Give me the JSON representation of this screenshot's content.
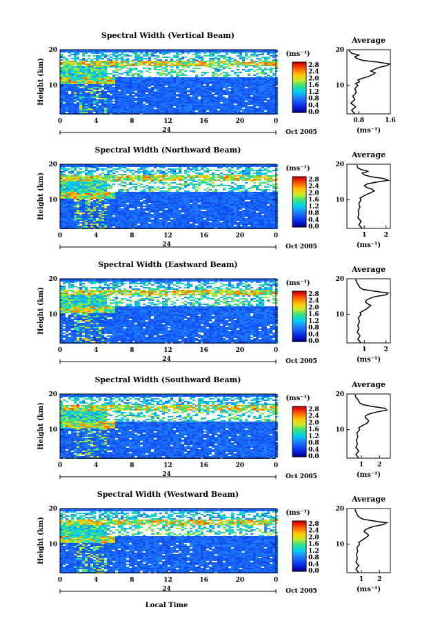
{
  "figure": {
    "x_label": "Local Time",
    "date_label": "Oct 2005",
    "y_label": "Height (km)",
    "colorbar_unit": "(ms⁻¹)",
    "avg_title": "Average",
    "avg_xlabel": "(ms⁻¹)"
  },
  "chart_data": [
    {
      "type": "heatmap",
      "title": "Spectral Width (Vertical Beam)",
      "xlabel": "Local Time",
      "ylabel": "Height (km)",
      "x_ticks": [
        "0",
        "4",
        "8",
        "12",
        "16",
        "20",
        "0"
      ],
      "x_day_label": "24",
      "xlim": [
        0,
        24
      ],
      "ylim": [
        2,
        20
      ],
      "y_ticks": [
        "10",
        "20"
      ],
      "colorbar": {
        "unit": "(ms⁻¹)",
        "ticks": [
          "2.8",
          "2.4",
          "2.0",
          "1.6",
          "1.2",
          "0.8",
          "0.4",
          "0.0"
        ],
        "range": [
          0,
          3.0
        ]
      },
      "average": {
        "title": "Average",
        "xlabel": "(ms⁻¹)",
        "x_ticks": [
          "0.8",
          "1.6"
        ],
        "x_tick_values": [
          0.8,
          1.6
        ],
        "xlim": [
          0.5,
          1.6
        ],
        "y_ticks": [
          "10",
          "20"
        ],
        "ylim": [
          2,
          20
        ],
        "profile": [
          [
            0.7,
            2
          ],
          [
            0.62,
            3
          ],
          [
            0.72,
            4
          ],
          [
            0.6,
            5
          ],
          [
            0.7,
            6
          ],
          [
            0.65,
            7
          ],
          [
            0.74,
            8
          ],
          [
            0.7,
            9
          ],
          [
            0.78,
            10
          ],
          [
            0.72,
            10.5
          ],
          [
            0.82,
            11
          ],
          [
            0.78,
            11.5
          ],
          [
            0.9,
            12
          ],
          [
            1.05,
            12.5
          ],
          [
            1.15,
            13
          ],
          [
            1.22,
            13.5
          ],
          [
            1.1,
            14
          ],
          [
            1.2,
            14.5
          ],
          [
            1.3,
            15
          ],
          [
            1.5,
            15.5
          ],
          [
            1.58,
            16
          ],
          [
            1.3,
            16.5
          ],
          [
            0.9,
            17
          ],
          [
            0.75,
            17.5
          ],
          [
            0.7,
            18
          ],
          [
            0.8,
            18.5
          ],
          [
            0.62,
            19
          ],
          [
            0.55,
            19.8
          ]
        ]
      }
    },
    {
      "type": "heatmap",
      "title": "Spectral Width (Northward Beam)",
      "xlabel": "Local Time",
      "ylabel": "Height (km)",
      "x_ticks": [
        "0",
        "4",
        "8",
        "12",
        "16",
        "20",
        "0"
      ],
      "x_day_label": "24",
      "xlim": [
        0,
        24
      ],
      "ylim": [
        2,
        20
      ],
      "y_ticks": [
        "10",
        "20"
      ],
      "colorbar": {
        "unit": "(ms⁻¹)",
        "ticks": [
          "2.8",
          "2.4",
          "2.0",
          "1.6",
          "1.2",
          "0.8",
          "0.4",
          "0.0"
        ],
        "range": [
          0,
          3.0
        ]
      },
      "average": {
        "title": "Average",
        "xlabel": "(ms⁻¹)",
        "x_ticks": [
          "1",
          "2"
        ],
        "x_tick_values": [
          1,
          2
        ],
        "xlim": [
          0.2,
          2.2
        ],
        "y_ticks": [
          "10",
          "20"
        ],
        "ylim": [
          2,
          20
        ],
        "profile": [
          [
            0.9,
            2
          ],
          [
            0.75,
            3
          ],
          [
            0.85,
            4
          ],
          [
            0.7,
            5
          ],
          [
            0.75,
            6
          ],
          [
            0.72,
            7
          ],
          [
            0.8,
            8
          ],
          [
            0.75,
            9
          ],
          [
            0.85,
            10
          ],
          [
            0.8,
            10.5
          ],
          [
            0.95,
            11
          ],
          [
            1.1,
            11.5
          ],
          [
            1.3,
            12
          ],
          [
            1.45,
            12.5
          ],
          [
            1.35,
            13
          ],
          [
            1.1,
            13.5
          ],
          [
            1.0,
            14
          ],
          [
            1.15,
            14.5
          ],
          [
            1.6,
            15
          ],
          [
            2.1,
            15.5
          ],
          [
            1.9,
            16
          ],
          [
            1.3,
            16.5
          ],
          [
            1.0,
            17
          ],
          [
            0.9,
            17.5
          ],
          [
            1.2,
            18
          ],
          [
            0.85,
            18.5
          ],
          [
            0.7,
            19
          ],
          [
            0.65,
            19.8
          ]
        ]
      }
    },
    {
      "type": "heatmap",
      "title": "Spectral Width (Eastward Beam)",
      "xlabel": "Local Time",
      "ylabel": "Height (km)",
      "x_ticks": [
        "0",
        "4",
        "8",
        "12",
        "16",
        "20",
        "0"
      ],
      "x_day_label": "24",
      "xlim": [
        0,
        24
      ],
      "ylim": [
        2,
        20
      ],
      "y_ticks": [
        "10",
        "20"
      ],
      "colorbar": {
        "unit": "(ms⁻¹)",
        "ticks": [
          "2.8",
          "2.4",
          "2.0",
          "1.6",
          "1.2",
          "0.8",
          "0.4",
          "0.0"
        ],
        "range": [
          0,
          3.0
        ]
      },
      "average": {
        "title": "Average",
        "xlabel": "(ms⁻¹)",
        "x_ticks": [
          "1",
          "2"
        ],
        "x_tick_values": [
          1,
          2
        ],
        "xlim": [
          0.2,
          2.2
        ],
        "y_ticks": [
          "10",
          "20"
        ],
        "ylim": [
          2,
          20
        ],
        "profile": [
          [
            0.85,
            2
          ],
          [
            0.7,
            3
          ],
          [
            0.8,
            4
          ],
          [
            0.68,
            5
          ],
          [
            0.75,
            6
          ],
          [
            0.7,
            7
          ],
          [
            0.78,
            8
          ],
          [
            0.72,
            9
          ],
          [
            0.85,
            10
          ],
          [
            0.8,
            10.5
          ],
          [
            0.95,
            11
          ],
          [
            1.1,
            11.5
          ],
          [
            1.2,
            12
          ],
          [
            1.3,
            12.5
          ],
          [
            1.15,
            13
          ],
          [
            1.05,
            13.5
          ],
          [
            1.1,
            14
          ],
          [
            1.25,
            14.5
          ],
          [
            1.5,
            15
          ],
          [
            2.0,
            15.5
          ],
          [
            2.1,
            16
          ],
          [
            1.5,
            16.5
          ],
          [
            0.95,
            17
          ],
          [
            0.8,
            17.5
          ],
          [
            0.75,
            18
          ],
          [
            0.7,
            18.5
          ],
          [
            0.65,
            19
          ],
          [
            0.6,
            19.8
          ]
        ]
      }
    },
    {
      "type": "heatmap",
      "title": "Spectral Width (Southward Beam)",
      "xlabel": "Local Time",
      "ylabel": "Height (km)",
      "x_ticks": [
        "0",
        "4",
        "8",
        "12",
        "16",
        "20",
        "0"
      ],
      "x_day_label": "24",
      "xlim": [
        0,
        24
      ],
      "ylim": [
        2,
        20
      ],
      "y_ticks": [
        "10",
        "20"
      ],
      "colorbar": {
        "unit": "(ms⁻¹)",
        "ticks": [
          "2.8",
          "2.4",
          "2.0",
          "1.6",
          "1.2",
          "0.8",
          "0.4",
          "0.0"
        ],
        "range": [
          0,
          3.0
        ]
      },
      "average": {
        "title": "Average",
        "xlabel": "(ms⁻¹)",
        "x_ticks": [
          "1",
          "2"
        ],
        "x_tick_values": [
          1,
          2
        ],
        "xlim": [
          0.2,
          2.6
        ],
        "y_ticks": [
          "10",
          "20"
        ],
        "ylim": [
          2,
          20
        ],
        "profile": [
          [
            0.85,
            2
          ],
          [
            0.7,
            3
          ],
          [
            0.85,
            4
          ],
          [
            0.7,
            5
          ],
          [
            0.78,
            6
          ],
          [
            0.72,
            7
          ],
          [
            0.8,
            8
          ],
          [
            0.75,
            9
          ],
          [
            0.9,
            10
          ],
          [
            0.85,
            10.5
          ],
          [
            1.0,
            11
          ],
          [
            1.2,
            11.5
          ],
          [
            1.35,
            12
          ],
          [
            1.4,
            12.5
          ],
          [
            1.3,
            13
          ],
          [
            1.2,
            13.5
          ],
          [
            1.25,
            14
          ],
          [
            1.5,
            14.5
          ],
          [
            1.9,
            15
          ],
          [
            2.4,
            15.5
          ],
          [
            2.3,
            16
          ],
          [
            1.6,
            16.5
          ],
          [
            1.1,
            17
          ],
          [
            0.9,
            17.5
          ],
          [
            0.85,
            18
          ],
          [
            0.8,
            18.5
          ],
          [
            0.7,
            19
          ],
          [
            0.65,
            19.8
          ]
        ]
      }
    },
    {
      "type": "heatmap",
      "title": "Spectral Width (Westward Beam)",
      "xlabel": "Local Time",
      "ylabel": "Height (km)",
      "x_ticks": [
        "0",
        "4",
        "8",
        "12",
        "16",
        "20",
        "0"
      ],
      "x_day_label": "24",
      "xlim": [
        0,
        24
      ],
      "ylim": [
        2,
        20
      ],
      "y_ticks": [
        "10",
        "20"
      ],
      "colorbar": {
        "unit": "(ms⁻¹)",
        "ticks": [
          "2.8",
          "2.4",
          "2.0",
          "1.6",
          "1.2",
          "0.8",
          "0.4",
          "0.0"
        ],
        "range": [
          0,
          3.0
        ]
      },
      "average": {
        "title": "Average",
        "xlabel": "(ms⁻¹)",
        "x_ticks": [
          "1",
          "2"
        ],
        "x_tick_values": [
          1,
          2
        ],
        "xlim": [
          0.2,
          2.6
        ],
        "y_ticks": [
          "10",
          "20"
        ],
        "ylim": [
          2,
          20
        ],
        "profile": [
          [
            0.85,
            2
          ],
          [
            0.7,
            3
          ],
          [
            0.85,
            4
          ],
          [
            0.7,
            5
          ],
          [
            0.78,
            6
          ],
          [
            0.72,
            7
          ],
          [
            0.8,
            8
          ],
          [
            0.75,
            9
          ],
          [
            0.9,
            10
          ],
          [
            0.85,
            10.5
          ],
          [
            1.0,
            11
          ],
          [
            1.15,
            11.5
          ],
          [
            1.3,
            12
          ],
          [
            1.4,
            12.5
          ],
          [
            1.3,
            13
          ],
          [
            1.15,
            13.5
          ],
          [
            1.2,
            14
          ],
          [
            1.4,
            14.5
          ],
          [
            1.7,
            15
          ],
          [
            2.2,
            15.5
          ],
          [
            2.4,
            16
          ],
          [
            1.7,
            16.5
          ],
          [
            1.1,
            17
          ],
          [
            0.9,
            17.5
          ],
          [
            0.8,
            18
          ],
          [
            0.75,
            18.5
          ],
          [
            0.7,
            19
          ],
          [
            0.65,
            19.8
          ]
        ]
      }
    }
  ]
}
